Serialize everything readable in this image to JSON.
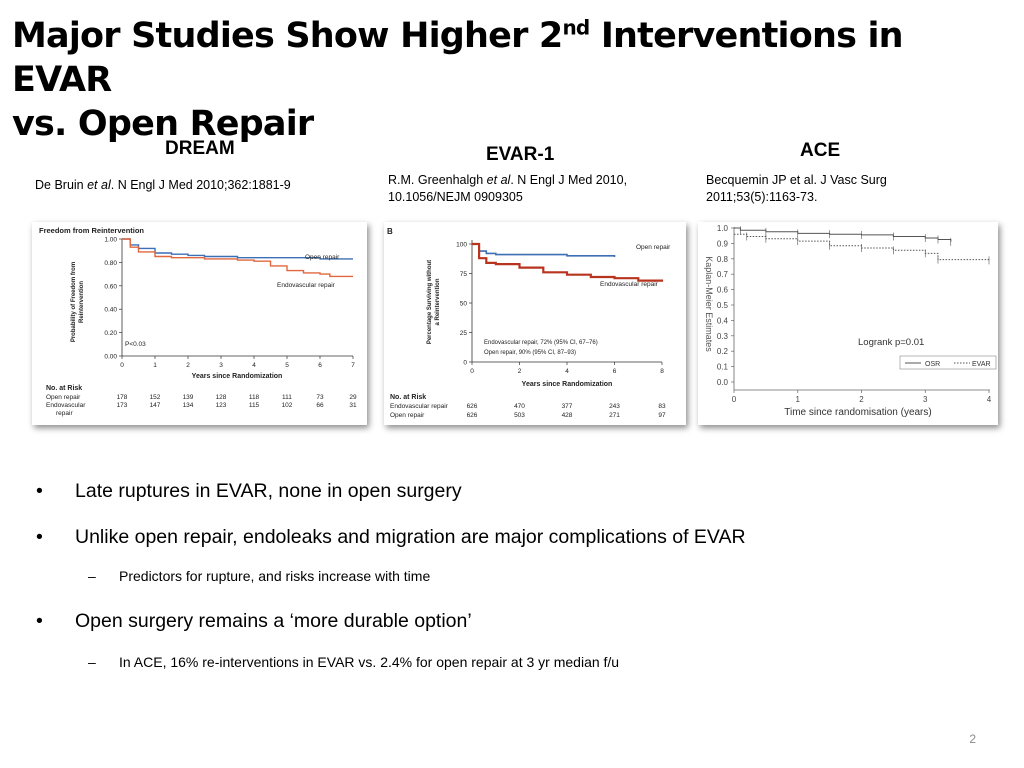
{
  "slide": {
    "title_part1": "Major Studies Show Higher 2",
    "title_sup": "nd",
    "title_part2": " Interventions in EVAR",
    "title_line2": "vs. Open Repair",
    "page_number": "2"
  },
  "studies": [
    {
      "name": "DREAM",
      "citation_pre": "De Bruin ",
      "citation_em": "et al",
      "citation_post": ". N Engl J Med 2010;362:1881-9"
    },
    {
      "name": "EVAR-1",
      "citation_line1_pre": "R.M. Greenhalgh ",
      "citation_line1_em": "et al",
      "citation_line1_post": ". N Engl J Med 2010,",
      "citation_line2": "10.1056/NEJM 0909305"
    },
    {
      "name": "ACE",
      "citation_line1": "Becquemin JP et al. J Vasc Surg",
      "citation_line2": "2011;53(5):1163-73."
    }
  ],
  "bullets": [
    {
      "level": 1,
      "mark": "•",
      "text": "Late ruptures in EVAR, none in open surgery"
    },
    {
      "level": 1,
      "mark": "•",
      "text": "Unlike open repair, endoleaks and migration are major complications of EVAR"
    },
    {
      "level": 2,
      "mark": "–",
      "text": "Predictors for rupture, and risks increase with time"
    },
    {
      "level": 1,
      "mark": "•",
      "text": "Open surgery remains a ‘more durable option’"
    },
    {
      "level": 2,
      "mark": "–",
      "text": "In ACE, 16% re-interventions in EVAR vs. 2.4% for open repair at 3 yr median f/u"
    }
  ],
  "chart_data": [
    {
      "type": "line",
      "title": "Freedom from Reintervention",
      "ylabel_line1": "Probability of Freedom from",
      "ylabel_line2": "Reintervention",
      "xlabel": "Years since Randomization",
      "xlim": [
        0,
        7
      ],
      "ylim": [
        0,
        1
      ],
      "x_ticks": [
        "0",
        "1",
        "2",
        "3",
        "4",
        "5",
        "6",
        "7"
      ],
      "y_ticks": [
        "0.00",
        "0.20",
        "0.40",
        "0.60",
        "0.80",
        "1.00"
      ],
      "annotation": "P<0.03",
      "series": [
        {
          "name": "Open repair",
          "color": "#3c6fb5",
          "points": [
            [
              0,
              1.0
            ],
            [
              0.25,
              0.95
            ],
            [
              0.5,
              0.92
            ],
            [
              1,
              0.88
            ],
            [
              1.5,
              0.87
            ],
            [
              2,
              0.86
            ],
            [
              2.5,
              0.85
            ],
            [
              3,
              0.85
            ],
            [
              3.5,
              0.84
            ],
            [
              4,
              0.84
            ],
            [
              5,
              0.84
            ],
            [
              6,
              0.83
            ],
            [
              6.5,
              0.83
            ],
            [
              7,
              0.83
            ]
          ]
        },
        {
          "name": "Endovascular repair",
          "color": "#e0673e",
          "points": [
            [
              0,
              1.0
            ],
            [
              0.25,
              0.93
            ],
            [
              0.5,
              0.89
            ],
            [
              1,
              0.85
            ],
            [
              1.5,
              0.84
            ],
            [
              2,
              0.84
            ],
            [
              2.5,
              0.83
            ],
            [
              3,
              0.83
            ],
            [
              3.5,
              0.82
            ],
            [
              4,
              0.81
            ],
            [
              4.5,
              0.77
            ],
            [
              5,
              0.73
            ],
            [
              5.5,
              0.71
            ],
            [
              6,
              0.7
            ],
            [
              6.3,
              0.68
            ],
            [
              7,
              0.68
            ]
          ]
        }
      ],
      "risk_table": {
        "header": "No. at Risk",
        "rows": [
          {
            "label": "Open repair",
            "values": [
              "178",
              "152",
              "139",
              "128",
              "118",
              "111",
              "73",
              "29"
            ]
          },
          {
            "label": "Endovascular",
            "label2": "repair",
            "values": [
              "173",
              "147",
              "134",
              "123",
              "115",
              "102",
              "66",
              "31"
            ]
          }
        ]
      }
    },
    {
      "type": "line",
      "panel_label": "B",
      "ylabel_line1": "Percentage Surviving without",
      "ylabel_line2": "a Reintervention",
      "xlabel": "Years since Randomization",
      "xlim": [
        0,
        8
      ],
      "ylim": [
        0,
        100
      ],
      "x_ticks": [
        "0",
        "2",
        "4",
        "6",
        "8"
      ],
      "y_ticks": [
        "0",
        "25",
        "50",
        "75",
        "100"
      ],
      "annotations": [
        "Endovascular repair, 72% (95% CI, 67–76)",
        "Open repair, 90% (95% CI, 87–93)"
      ],
      "series": [
        {
          "name": "Open repair",
          "color": "#3c6fb5",
          "points": [
            [
              0,
              100
            ],
            [
              0.3,
              94
            ],
            [
              0.6,
              92
            ],
            [
              1,
              91
            ],
            [
              2,
              91
            ],
            [
              3,
              91
            ],
            [
              4,
              90
            ],
            [
              5,
              90
            ],
            [
              6,
              89
            ]
          ]
        },
        {
          "name": "Endovascular repair",
          "color": "#b8341f",
          "points": [
            [
              0,
              100
            ],
            [
              0.3,
              88
            ],
            [
              0.6,
              84
            ],
            [
              1,
              83
            ],
            [
              2,
              80
            ],
            [
              3,
              76
            ],
            [
              4,
              74
            ],
            [
              5,
              72
            ],
            [
              6,
              71
            ],
            [
              7,
              69
            ],
            [
              8,
              68
            ]
          ]
        }
      ],
      "risk_table": {
        "header": "No. at Risk",
        "rows": [
          {
            "label": "Endovascular repair",
            "values": [
              "626",
              "470",
              "377",
              "243",
              "83"
            ]
          },
          {
            "label": "Open repair",
            "values": [
              "626",
              "503",
              "428",
              "271",
              "97"
            ]
          }
        ]
      }
    },
    {
      "type": "line",
      "ylabel": "Kaplan-Meier Estimates",
      "xlabel": "Time since randomisation (years)",
      "xlim": [
        0,
        4
      ],
      "ylim": [
        0,
        1
      ],
      "x_ticks": [
        "0",
        "1",
        "2",
        "3",
        "4"
      ],
      "y_ticks": [
        "0.0",
        "0.1",
        "0.2",
        "0.3",
        "0.4",
        "0.5",
        "0.6",
        "0.7",
        "0.8",
        "0.9",
        "1.0"
      ],
      "annotation": "Logrank p=0.01",
      "series": [
        {
          "name": "OSR",
          "style": "solid",
          "color": "#555555",
          "points": [
            [
              0,
              1.0
            ],
            [
              0.1,
              0.985
            ],
            [
              0.5,
              0.975
            ],
            [
              1,
              0.965
            ],
            [
              1.5,
              0.96
            ],
            [
              2,
              0.955
            ],
            [
              2.5,
              0.945
            ],
            [
              3,
              0.935
            ],
            [
              3.2,
              0.925
            ],
            [
              3.4,
              0.91
            ]
          ]
        },
        {
          "name": "EVAR",
          "style": "dotted",
          "color": "#555555",
          "points": [
            [
              0,
              0.96
            ],
            [
              0.2,
              0.945
            ],
            [
              0.5,
              0.93
            ],
            [
              1,
              0.915
            ],
            [
              1.5,
              0.885
            ],
            [
              2,
              0.87
            ],
            [
              2.5,
              0.855
            ],
            [
              3,
              0.835
            ],
            [
              3.2,
              0.795
            ],
            [
              4,
              0.79
            ]
          ]
        }
      ]
    }
  ]
}
